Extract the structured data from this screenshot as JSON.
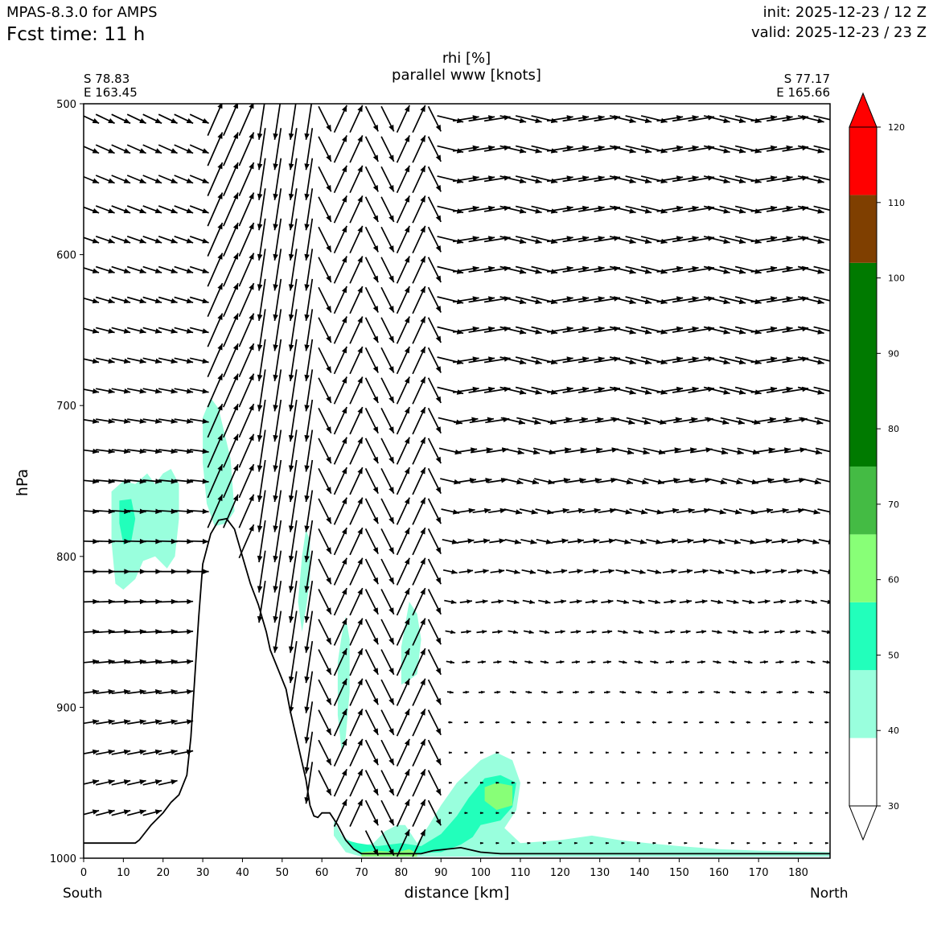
{
  "header": {
    "model": "MPAS-8.3.0 for AMPS",
    "forecast_time": "Fcst time:   11 h",
    "init": "init: 2025-12-23 / 12 Z",
    "valid": "valid: 2025-12-23 / 23 Z"
  },
  "endpoints": {
    "left_lat": "S 78.83",
    "left_lon": "E 163.45",
    "right_lat": "S 77.17",
    "right_lon": "E 165.66"
  },
  "direction_labels": {
    "left": "South",
    "right": "North"
  },
  "chart_data": {
    "type": "contourf",
    "title": "rhi [%]",
    "subtitle": "parallel www [knots]",
    "xlabel": "distance [km]",
    "ylabel": "hPa",
    "xlim": [
      0,
      188
    ],
    "ylim": [
      1000,
      500
    ],
    "y_inverted": true,
    "x_ticks": [
      0,
      10,
      20,
      30,
      40,
      50,
      60,
      70,
      80,
      90,
      100,
      110,
      120,
      130,
      140,
      150,
      160,
      170,
      180
    ],
    "y_ticks": [
      500,
      600,
      700,
      800,
      900,
      1000
    ],
    "colorbar": {
      "levels": [
        30,
        40,
        50,
        60,
        70,
        80,
        90,
        100,
        110,
        120
      ],
      "tick_labels": [
        "30",
        "40",
        "50",
        "60",
        "70",
        "80",
        "90",
        "100",
        "110",
        "120"
      ],
      "bands": [
        {
          "from": 30,
          "to": 39,
          "color": "#ffffff"
        },
        {
          "from": 39,
          "to": 48,
          "color": "#99ffdd"
        },
        {
          "from": 48,
          "to": 57,
          "color": "#22ffbb"
        },
        {
          "from": 57,
          "to": 66,
          "color": "#88ff77"
        },
        {
          "from": 66,
          "to": 75,
          "color": "#44bb44"
        },
        {
          "from": 75,
          "to": 102,
          "color": "#007a00"
        },
        {
          "from": 102,
          "to": 111,
          "color": "#7f3f00"
        },
        {
          "from": 111,
          "to": 120,
          "color": "#ff0000"
        }
      ],
      "extend": "both"
    },
    "terrain_surface": [
      {
        "x": 0,
        "p": 990
      },
      {
        "x": 13,
        "p": 990
      },
      {
        "x": 14,
        "p": 988
      },
      {
        "x": 17,
        "p": 978
      },
      {
        "x": 20,
        "p": 970
      },
      {
        "x": 22,
        "p": 963
      },
      {
        "x": 24,
        "p": 958
      },
      {
        "x": 26,
        "p": 945
      },
      {
        "x": 27,
        "p": 920
      },
      {
        "x": 28,
        "p": 880
      },
      {
        "x": 29,
        "p": 840
      },
      {
        "x": 30,
        "p": 805
      },
      {
        "x": 32,
        "p": 785
      },
      {
        "x": 34,
        "p": 776
      },
      {
        "x": 36,
        "p": 775
      },
      {
        "x": 38,
        "p": 782
      },
      {
        "x": 40,
        "p": 800
      },
      {
        "x": 42,
        "p": 818
      },
      {
        "x": 44,
        "p": 832
      },
      {
        "x": 46,
        "p": 850
      },
      {
        "x": 47,
        "p": 862
      },
      {
        "x": 49,
        "p": 875
      },
      {
        "x": 51,
        "p": 888
      },
      {
        "x": 52,
        "p": 902
      },
      {
        "x": 54,
        "p": 925
      },
      {
        "x": 56,
        "p": 948
      },
      {
        "x": 57,
        "p": 965
      },
      {
        "x": 58,
        "p": 972
      },
      {
        "x": 59,
        "p": 973
      },
      {
        "x": 60,
        "p": 970
      },
      {
        "x": 62,
        "p": 970
      },
      {
        "x": 64,
        "p": 978
      },
      {
        "x": 66,
        "p": 988
      },
      {
        "x": 68,
        "p": 994
      },
      {
        "x": 70,
        "p": 997
      },
      {
        "x": 85,
        "p": 997
      },
      {
        "x": 88,
        "p": 995
      },
      {
        "x": 95,
        "p": 993
      },
      {
        "x": 100,
        "p": 996
      },
      {
        "x": 105,
        "p": 997
      },
      {
        "x": 188,
        "p": 997
      }
    ],
    "rhi_regions": [
      {
        "level": 40,
        "points": [
          [
            7,
            757
          ],
          [
            10,
            750
          ],
          [
            13,
            752
          ],
          [
            16,
            745
          ],
          [
            18,
            752
          ],
          [
            20,
            745
          ],
          [
            22,
            742
          ],
          [
            24,
            752
          ],
          [
            24,
            775
          ],
          [
            23,
            800
          ],
          [
            21,
            808
          ],
          [
            18,
            800
          ],
          [
            15,
            803
          ],
          [
            13,
            815
          ],
          [
            10,
            822
          ],
          [
            8,
            818
          ],
          [
            7,
            790
          ]
        ]
      },
      {
        "level": 50,
        "points": [
          [
            9,
            763
          ],
          [
            12,
            762
          ],
          [
            13,
            775
          ],
          [
            12,
            790
          ],
          [
            10,
            792
          ],
          [
            9,
            778
          ]
        ]
      },
      {
        "level": 40,
        "points": [
          [
            30,
            708
          ],
          [
            32,
            695
          ],
          [
            34,
            702
          ],
          [
            37,
            735
          ],
          [
            38,
            770
          ],
          [
            36,
            778
          ],
          [
            33,
            780
          ],
          [
            31,
            765
          ],
          [
            30,
            738
          ]
        ]
      },
      {
        "level": 40,
        "points": [
          [
            55,
            800
          ],
          [
            56,
            782
          ],
          [
            57,
            790
          ],
          [
            57,
            815
          ],
          [
            56,
            835
          ],
          [
            55,
            850
          ],
          [
            54,
            830
          ]
        ]
      },
      {
        "level": 40,
        "points": [
          [
            65,
            852
          ],
          [
            66,
            840
          ],
          [
            67,
            855
          ],
          [
            67,
            890
          ],
          [
            66,
            920
          ],
          [
            65,
            930
          ],
          [
            64,
            905
          ],
          [
            64,
            870
          ]
        ]
      },
      {
        "level": 40,
        "points": [
          [
            80,
            860
          ],
          [
            82,
            830
          ],
          [
            84,
            838
          ],
          [
            85,
            855
          ],
          [
            84,
            878
          ],
          [
            82,
            882
          ],
          [
            80,
            885
          ]
        ]
      },
      {
        "level": 40,
        "points": [
          [
            63,
            975
          ],
          [
            65,
            985
          ],
          [
            68,
            990
          ],
          [
            70,
            992
          ],
          [
            73,
            990
          ],
          [
            76,
            982
          ],
          [
            79,
            978
          ],
          [
            81,
            978
          ],
          [
            84,
            990
          ],
          [
            87,
            978
          ],
          [
            90,
            965
          ],
          [
            94,
            950
          ],
          [
            100,
            935
          ],
          [
            104,
            930
          ],
          [
            108,
            935
          ],
          [
            110,
            950
          ],
          [
            109,
            968
          ],
          [
            106,
            980
          ],
          [
            110,
            990
          ],
          [
            120,
            988
          ],
          [
            128,
            985
          ],
          [
            135,
            988
          ],
          [
            142,
            990
          ],
          [
            150,
            992
          ],
          [
            160,
            994
          ],
          [
            170,
            995
          ],
          [
            188,
            996
          ],
          [
            188,
            999
          ],
          [
            70,
            999
          ],
          [
            66,
            996
          ],
          [
            63,
            985
          ]
        ]
      },
      {
        "level": 50,
        "points": [
          [
            66,
            988
          ],
          [
            69,
            990
          ],
          [
            74,
            992
          ],
          [
            80,
            990
          ],
          [
            85,
            992
          ],
          [
            90,
            984
          ],
          [
            94,
            972
          ],
          [
            97,
            960
          ],
          [
            101,
            947
          ],
          [
            105,
            945
          ],
          [
            109,
            950
          ],
          [
            108,
            966
          ],
          [
            105,
            975
          ],
          [
            100,
            978
          ],
          [
            98,
            986
          ],
          [
            95,
            991
          ],
          [
            90,
            996
          ],
          [
            70,
            998
          ]
        ]
      },
      {
        "level": 60,
        "points": [
          [
            101,
            953
          ],
          [
            104,
            950
          ],
          [
            108,
            952
          ],
          [
            108,
            965
          ],
          [
            104,
            968
          ],
          [
            101,
            962
          ]
        ]
      },
      {
        "level": 60,
        "points": [
          [
            70,
            996
          ],
          [
            74,
            995
          ],
          [
            79,
            996
          ],
          [
            82,
            994
          ],
          [
            84,
            997
          ],
          [
            84,
            999
          ],
          [
            70,
            999
          ]
        ]
      }
    ]
  }
}
